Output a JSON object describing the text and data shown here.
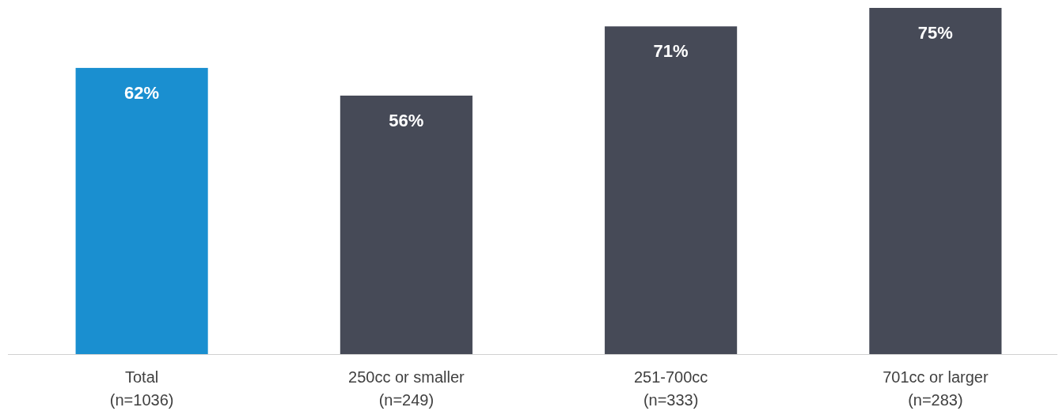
{
  "chart_data": {
    "type": "bar",
    "categories": [
      "Total\n(n=1036)",
      "250cc or smaller\n(n=249)",
      "251-700cc\n(n=333)",
      "701cc or larger\n(n=283)"
    ],
    "values": [
      62,
      56,
      71,
      75
    ],
    "colors": [
      "#1a8fd0",
      "#464a57",
      "#464a57",
      "#464a57"
    ],
    "value_labels": [
      "62%",
      "56%",
      "71%",
      "75%"
    ]
  }
}
